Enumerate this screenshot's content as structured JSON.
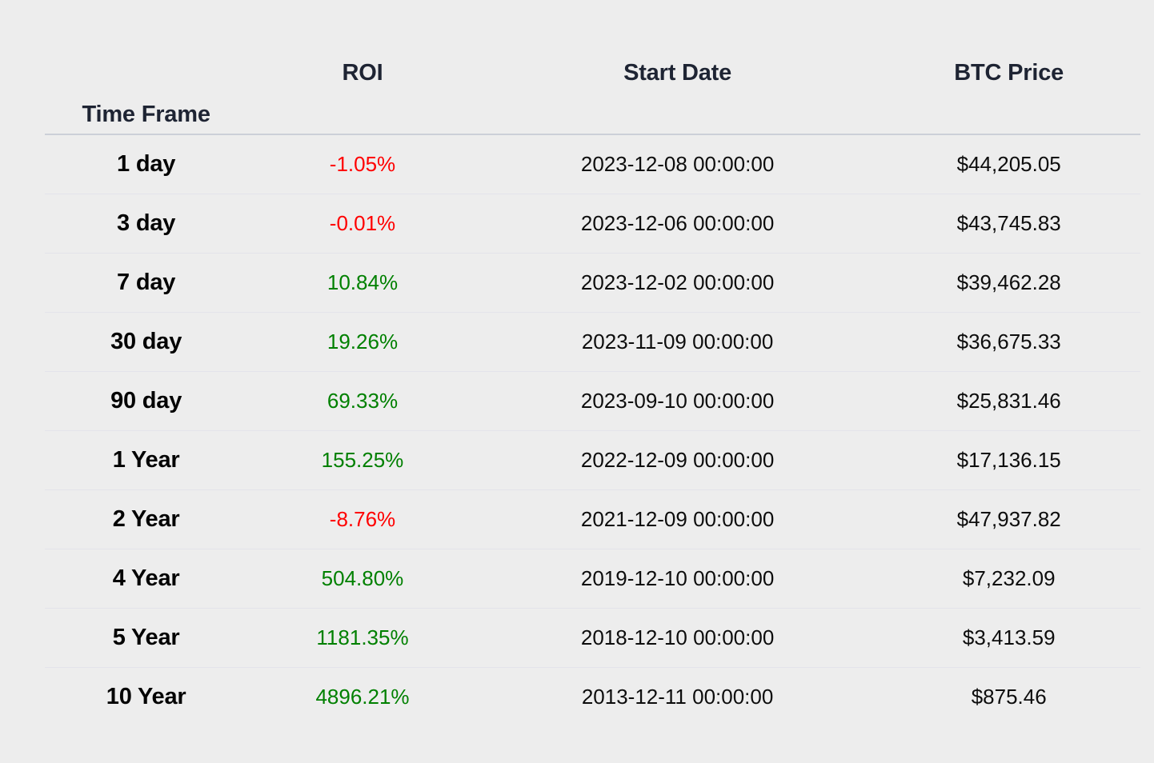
{
  "page": {
    "background": "#ededed"
  },
  "colors": {
    "positive_roi": "#008000",
    "negative_roi": "#ff0000",
    "header_text": "#1e2433",
    "body_text": "#0d0d0d",
    "label_text": "#030303",
    "row_divider": "#e3e3ea",
    "header_divider": "#ccd0d8",
    "background": "#ededed"
  },
  "table": {
    "headers": {
      "time_frame": "Time Frame",
      "roi": "ROI",
      "start_date": "Start Date",
      "btc_price": "BTC Price"
    },
    "rows": [
      {
        "time_frame": "1 day",
        "roi": "-1.05%",
        "trend": "down",
        "start_date": "2023-12-08 00:00:00",
        "btc_price": "$44,205.05"
      },
      {
        "time_frame": "3 day",
        "roi": "-0.01%",
        "trend": "down",
        "start_date": "2023-12-06 00:00:00",
        "btc_price": "$43,745.83"
      },
      {
        "time_frame": "7 day",
        "roi": "10.84%",
        "trend": "up",
        "start_date": "2023-12-02 00:00:00",
        "btc_price": "$39,462.28"
      },
      {
        "time_frame": "30 day",
        "roi": "19.26%",
        "trend": "up",
        "start_date": "2023-11-09 00:00:00",
        "btc_price": "$36,675.33"
      },
      {
        "time_frame": "90 day",
        "roi": "69.33%",
        "trend": "up",
        "start_date": "2023-09-10 00:00:00",
        "btc_price": "$25,831.46"
      },
      {
        "time_frame": "1 Year",
        "roi": "155.25%",
        "trend": "up",
        "start_date": "2022-12-09 00:00:00",
        "btc_price": "$17,136.15"
      },
      {
        "time_frame": "2 Year",
        "roi": "-8.76%",
        "trend": "down",
        "start_date": "2021-12-09 00:00:00",
        "btc_price": "$47,937.82"
      },
      {
        "time_frame": "4 Year",
        "roi": "504.80%",
        "trend": "up",
        "start_date": "2019-12-10 00:00:00",
        "btc_price": "$7,232.09"
      },
      {
        "time_frame": "5 Year",
        "roi": "1181.35%",
        "trend": "up",
        "start_date": "2018-12-10 00:00:00",
        "btc_price": "$3,413.59"
      },
      {
        "time_frame": "10 Year",
        "roi": "4896.21%",
        "trend": "up",
        "start_date": "2013-12-11 00:00:00",
        "btc_price": "$875.46"
      }
    ]
  },
  "chart_data": {
    "type": "table",
    "title": "",
    "columns": [
      "Time Frame",
      "ROI",
      "Start Date",
      "BTC Price"
    ],
    "rows": [
      [
        "1 day",
        "-1.05%",
        "2023-12-08 00:00:00",
        "$44,205.05"
      ],
      [
        "3 day",
        "-0.01%",
        "2023-12-06 00:00:00",
        "$43,745.83"
      ],
      [
        "7 day",
        "10.84%",
        "2023-12-02 00:00:00",
        "$39,462.28"
      ],
      [
        "30 day",
        "19.26%",
        "2023-11-09 00:00:00",
        "$36,675.33"
      ],
      [
        "90 day",
        "69.33%",
        "2023-09-10 00:00:00",
        "$25,831.46"
      ],
      [
        "1 Year",
        "155.25%",
        "2022-12-09 00:00:00",
        "$17,136.15"
      ],
      [
        "2 Year",
        "-8.76%",
        "2021-12-09 00:00:00",
        "$47,937.82"
      ],
      [
        "4 Year",
        "504.80%",
        "2019-12-10 00:00:00",
        "$7,232.09"
      ],
      [
        "5 Year",
        "1181.35%",
        "2018-12-10 00:00:00",
        "$3,413.59"
      ],
      [
        "10 Year",
        "4896.21%",
        "2013-12-11 00:00:00",
        "$875.46"
      ]
    ],
    "roi_values_pct": [
      -1.05,
      -0.01,
      10.84,
      19.26,
      69.33,
      155.25,
      -8.76,
      504.8,
      1181.35,
      4896.21
    ],
    "btc_prices_usd": [
      44205.05,
      43745.83,
      39462.28,
      36675.33,
      25831.46,
      17136.15,
      47937.82,
      7232.09,
      3413.59,
      875.46
    ]
  }
}
